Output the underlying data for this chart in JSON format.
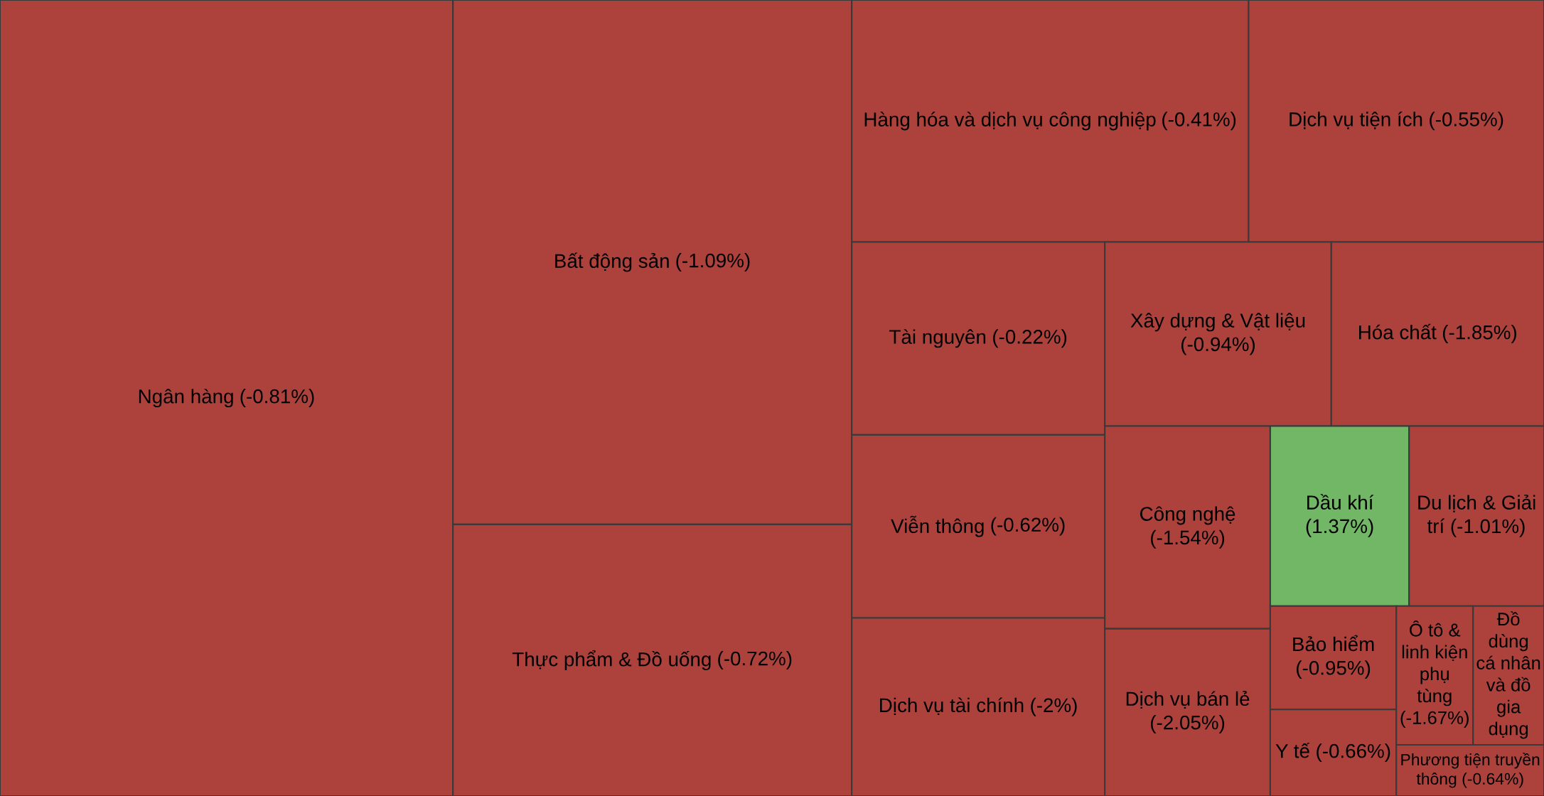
{
  "chart_data": {
    "type": "other",
    "categories": [
      "Ngân hàng",
      "Bất động sản",
      "Thực phẩm & Đồ uống",
      "Hàng hóa và dịch vụ công nghiệp",
      "Dịch vụ tiện ích",
      "Tài nguyên",
      "Viễn thông",
      "Dịch vụ tài chính",
      "Xây dựng & Vật liệu",
      "Hóa chất",
      "Công nghệ",
      "Dịch vụ bán lẻ",
      "Dầu khí",
      "Du lịch & Giải trí",
      "Bảo hiểm",
      "Y tế",
      "Ô tô & linh kiện phụ tùng",
      "Đồ dùng cá nhân và đồ gia dụng",
      "Phương tiện truyền thông"
    ],
    "values": [
      -0.81,
      -1.09,
      -0.72,
      -0.41,
      -0.55,
      -0.22,
      -0.62,
      -2,
      -0.94,
      -1.85,
      -1.54,
      -2.05,
      1.37,
      -1.01,
      -0.95,
      -0.66,
      -1.67,
      null,
      -0.64
    ],
    "value_labels": [
      "(-0.81%)",
      "(-1.09%)",
      "(-0.72%)",
      "(-0.41%)",
      "(-0.55%)",
      "(-0.22%)",
      "(-0.62%)",
      "(-2%)",
      "(-0.94%)",
      "(-1.85%)",
      "(-1.54%)",
      "(-2.05%)",
      "(1.37%)",
      "(-1.01%)",
      "(-0.95%)",
      "(-0.66%)",
      "(-1.67%)",
      null,
      "(-0.64%)"
    ],
    "colors": [
      "#ad423c",
      "#ad423c",
      "#ad423c",
      "#ad423c",
      "#ad423c",
      "#ad423c",
      "#ad423c",
      "#ad423c",
      "#ad423c",
      "#ad423c",
      "#ad423c",
      "#ad423c",
      "#72b766",
      "#ad423c",
      "#ad423c",
      "#ad423c",
      "#ad423c",
      "#ad423c",
      "#ad423c"
    ]
  }
}
